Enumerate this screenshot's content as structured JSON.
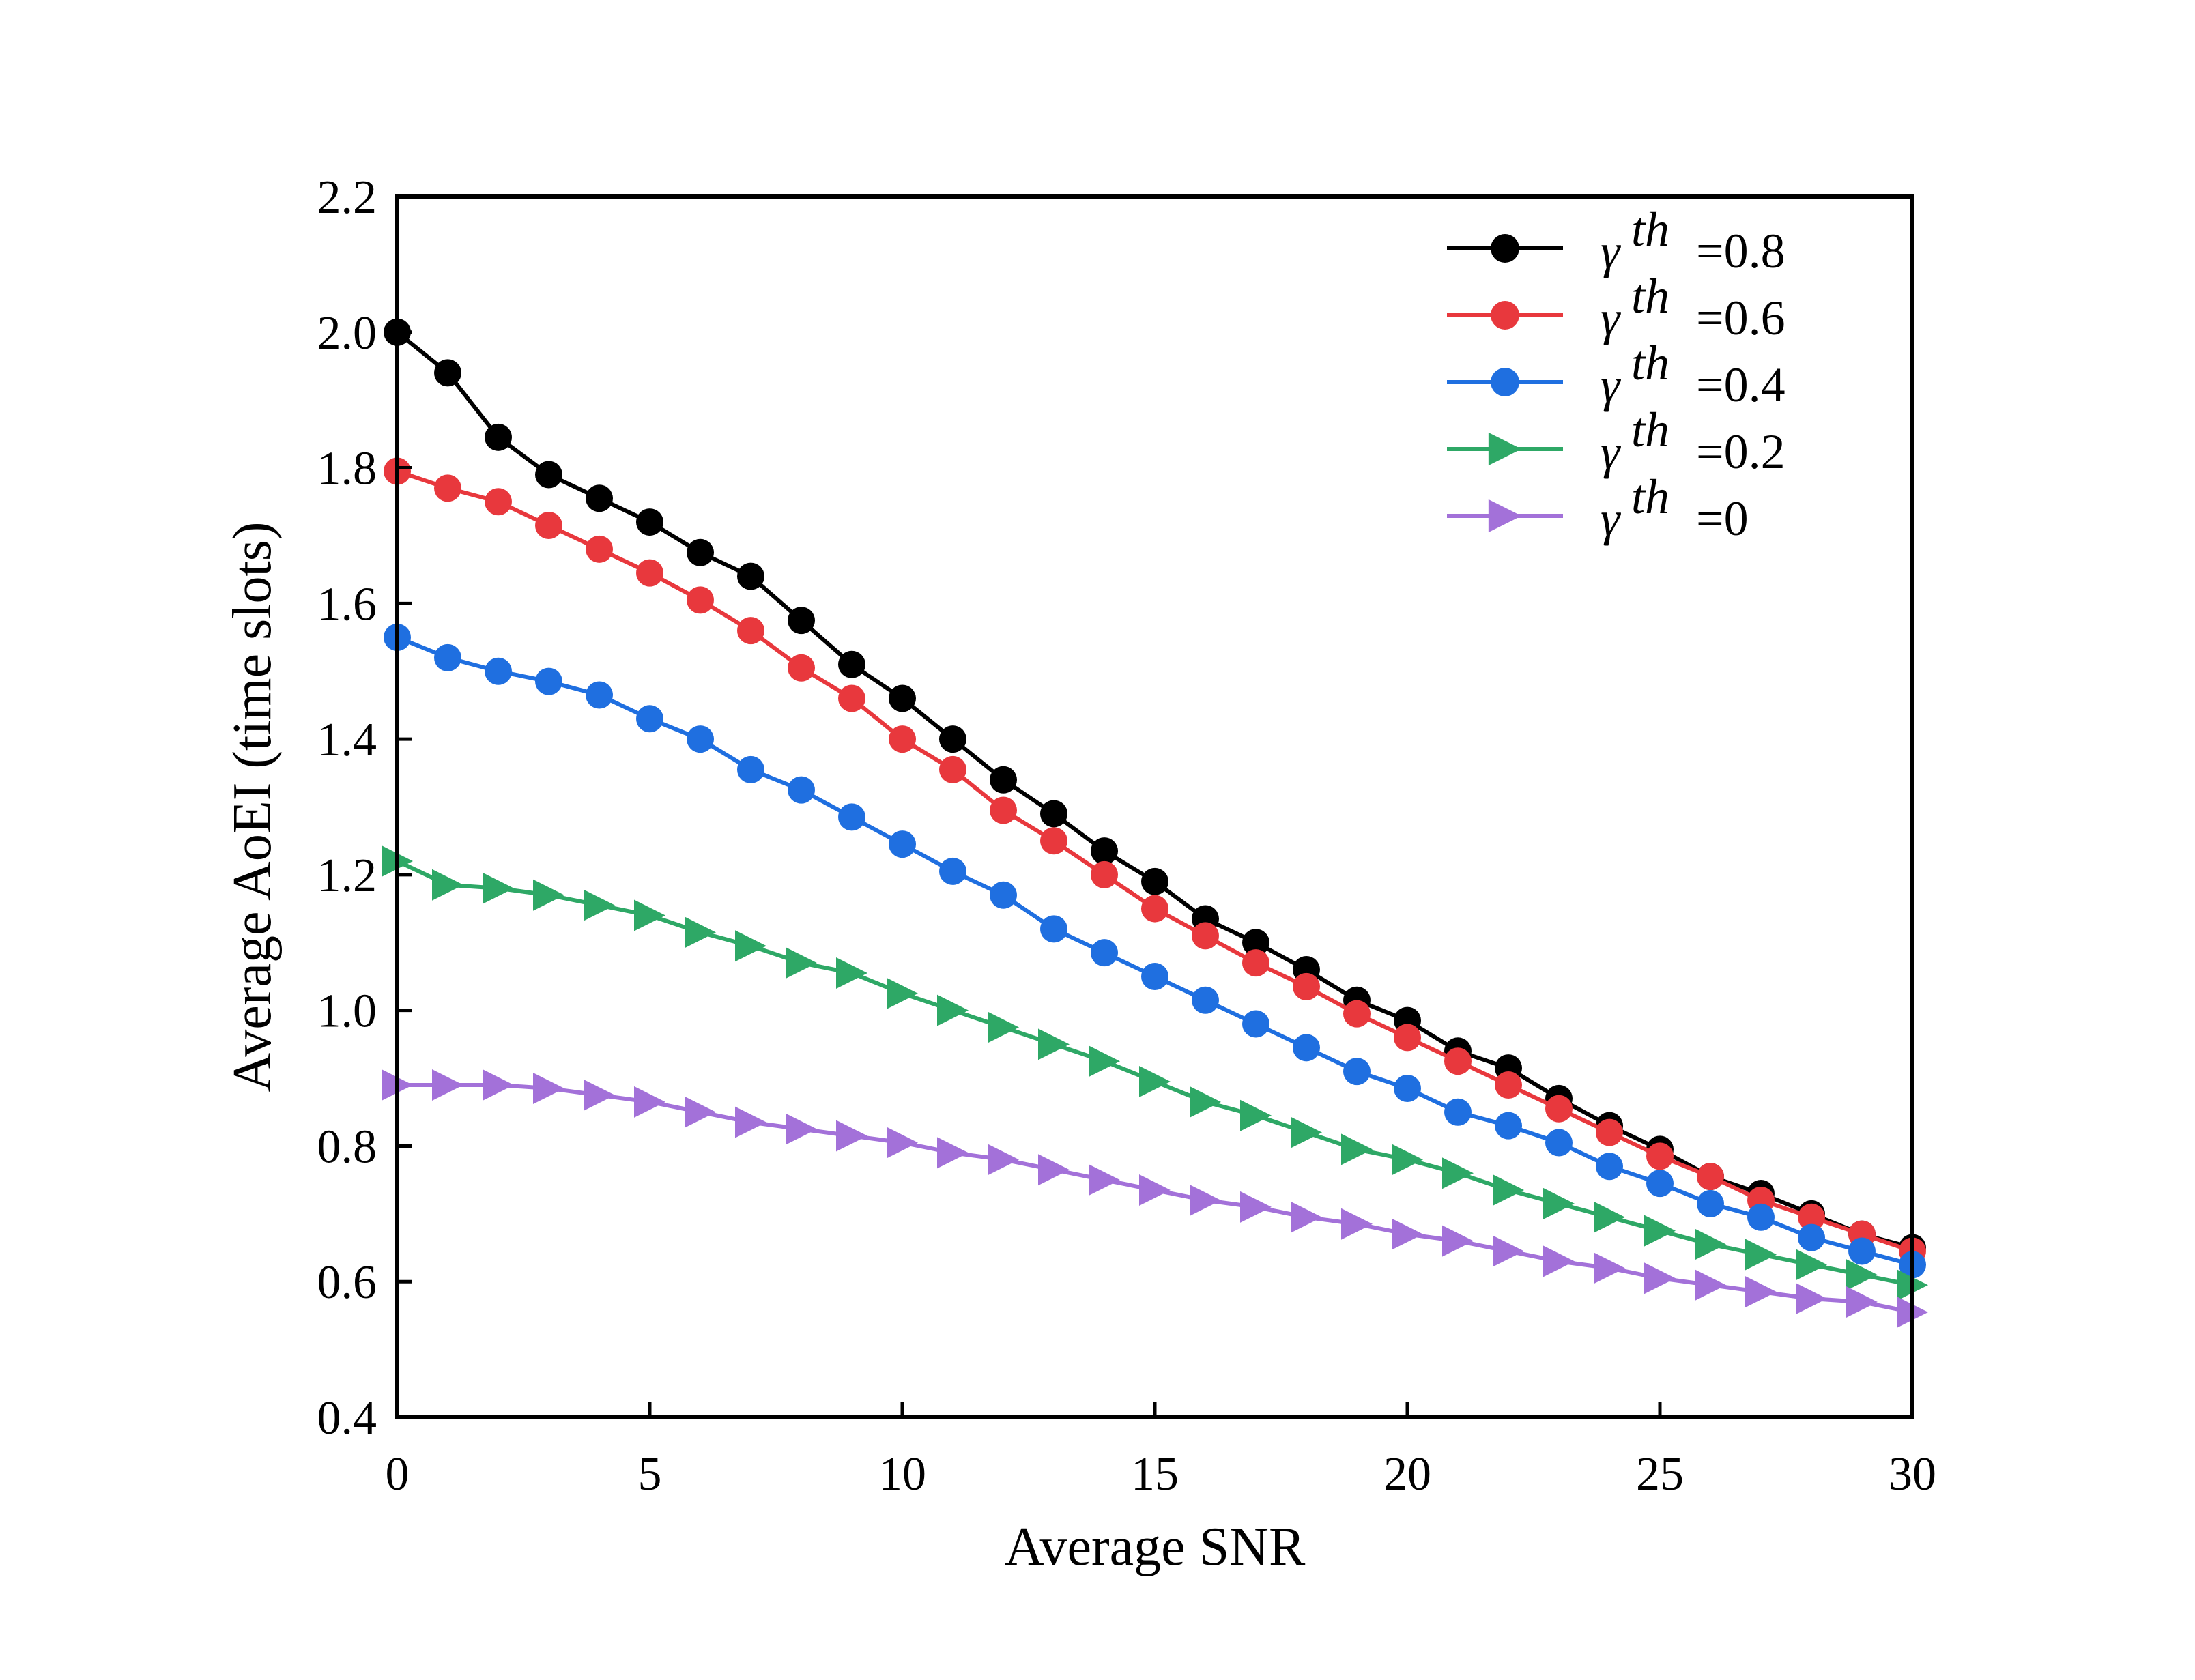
{
  "chart_data": {
    "type": "line",
    "xlabel": "Average SNR",
    "ylabel": "Average AoEI (time slots)",
    "xlim": [
      0,
      30
    ],
    "ylim": [
      0.4,
      2.2
    ],
    "xticks": [
      "0",
      "5",
      "10",
      "15",
      "20",
      "25",
      "30"
    ],
    "yticks": [
      "0.4",
      "0.6",
      "0.8",
      "1.0",
      "1.2",
      "1.4",
      "1.6",
      "1.8",
      "2.0",
      "2.2"
    ],
    "grid": false,
    "legend_position": "top-right",
    "x": [
      0,
      1,
      2,
      3,
      4,
      5,
      6,
      7,
      8,
      9,
      10,
      11,
      12,
      13,
      14,
      15,
      16,
      17,
      18,
      19,
      20,
      21,
      22,
      23,
      24,
      25,
      26,
      27,
      28,
      29,
      30
    ],
    "series": [
      {
        "name": "=0.8",
        "symbol": "γ",
        "superscript": "th",
        "color": "#000000",
        "marker": "circle",
        "values": [
          2.0,
          1.94,
          1.845,
          1.79,
          1.755,
          1.72,
          1.675,
          1.64,
          1.575,
          1.51,
          1.46,
          1.4,
          1.34,
          1.29,
          1.235,
          1.19,
          1.135,
          1.1,
          1.06,
          1.015,
          0.985,
          0.94,
          0.915,
          0.87,
          0.83,
          0.795,
          0.755,
          0.73,
          0.7,
          0.67,
          0.65
        ]
      },
      {
        "name": "=0.6",
        "symbol": "γ",
        "superscript": "th",
        "color": "#e8383d",
        "marker": "circle",
        "values": [
          1.795,
          1.77,
          1.75,
          1.715,
          1.68,
          1.645,
          1.605,
          1.56,
          1.505,
          1.46,
          1.4,
          1.355,
          1.295,
          1.25,
          1.2,
          1.15,
          1.11,
          1.07,
          1.035,
          0.995,
          0.96,
          0.925,
          0.89,
          0.855,
          0.82,
          0.785,
          0.755,
          0.72,
          0.695,
          0.67,
          0.645
        ]
      },
      {
        "name": "=0.4",
        "symbol": "γ",
        "superscript": "th",
        "color": "#1f6fe0",
        "marker": "circle",
        "values": [
          1.55,
          1.52,
          1.5,
          1.485,
          1.465,
          1.43,
          1.4,
          1.355,
          1.325,
          1.285,
          1.245,
          1.205,
          1.17,
          1.12,
          1.085,
          1.05,
          1.015,
          0.98,
          0.945,
          0.91,
          0.885,
          0.85,
          0.83,
          0.805,
          0.77,
          0.745,
          0.715,
          0.695,
          0.665,
          0.645,
          0.625
        ]
      },
      {
        "name": "=0.2",
        "symbol": "γ",
        "superscript": "th",
        "color": "#2ea866",
        "marker": "triangle-right",
        "values": [
          1.22,
          1.185,
          1.18,
          1.17,
          1.155,
          1.14,
          1.115,
          1.095,
          1.07,
          1.055,
          1.025,
          1.0,
          0.975,
          0.95,
          0.925,
          0.895,
          0.865,
          0.845,
          0.82,
          0.795,
          0.78,
          0.76,
          0.735,
          0.715,
          0.695,
          0.675,
          0.655,
          0.64,
          0.625,
          0.61,
          0.595
        ]
      },
      {
        "name": "=0",
        "symbol": "γ",
        "superscript": "th",
        "color": "#a371d9",
        "marker": "triangle-right",
        "values": [
          0.89,
          0.89,
          0.89,
          0.885,
          0.875,
          0.865,
          0.85,
          0.835,
          0.825,
          0.815,
          0.805,
          0.79,
          0.78,
          0.765,
          0.75,
          0.735,
          0.72,
          0.71,
          0.695,
          0.685,
          0.67,
          0.66,
          0.645,
          0.63,
          0.62,
          0.605,
          0.595,
          0.585,
          0.575,
          0.57,
          0.555
        ]
      }
    ]
  }
}
